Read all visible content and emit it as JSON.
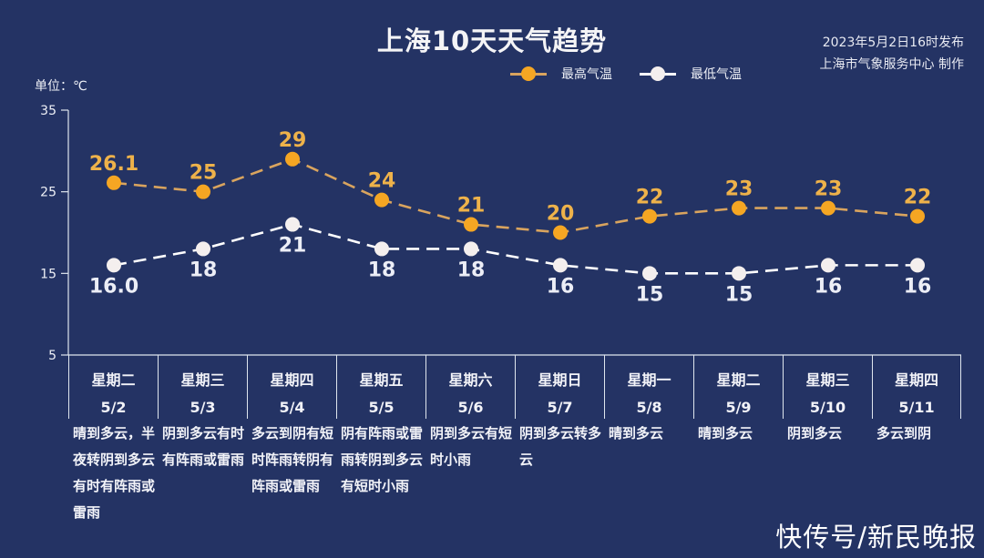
{
  "header": {
    "title": "上海10天天气趋势",
    "publish_time": "2023年5月2日16时发布",
    "publisher": "上海市气象服务中心 制作"
  },
  "legend": {
    "high": {
      "label": "最高气温",
      "color": "#f5a623",
      "line_color": "#d9a45e",
      "icon": "dashed-line-with-circle-marker"
    },
    "low": {
      "label": "最低气温",
      "color": "#f4efee",
      "line_color": "#ffffff",
      "icon": "dashed-line-with-circle-marker"
    }
  },
  "axis": {
    "unit_label": "单位：℃",
    "ticks": [
      "35",
      "25",
      "15",
      "5"
    ]
  },
  "days": [
    {
      "weekday": "星期二",
      "date": "5/2",
      "weather": "晴到多云，半夜转阴到多云有时有阵雨或雷雨",
      "high_label": "26.1",
      "low_label": "16.0"
    },
    {
      "weekday": "星期三",
      "date": "5/3",
      "weather": "阴到多云有时有阵雨或雷雨",
      "high_label": "25",
      "low_label": "18"
    },
    {
      "weekday": "星期四",
      "date": "5/4",
      "weather": "多云到阴有短时阵雨转阴有阵雨或雷雨",
      "high_label": "29",
      "low_label": "21"
    },
    {
      "weekday": "星期五",
      "date": "5/5",
      "weather": "阴有阵雨或雷雨转阴到多云有短时小雨",
      "high_label": "24",
      "low_label": "18"
    },
    {
      "weekday": "星期六",
      "date": "5/6",
      "weather": "阴到多云有短时小雨",
      "high_label": "21",
      "low_label": "18"
    },
    {
      "weekday": "星期日",
      "date": "5/7",
      "weather": "阴到多云转多云",
      "high_label": "20",
      "low_label": "16"
    },
    {
      "weekday": "星期一",
      "date": "5/8",
      "weather": "晴到多云",
      "high_label": "22",
      "low_label": "15"
    },
    {
      "weekday": "星期二",
      "date": "5/9",
      "weather": "晴到多云",
      "high_label": "23",
      "low_label": "15"
    },
    {
      "weekday": "星期三",
      "date": "5/10",
      "weather": "阴到多云",
      "high_label": "23",
      "low_label": "16"
    },
    {
      "weekday": "星期四",
      "date": "5/11",
      "weather": "多云到阴",
      "high_label": "22",
      "low_label": "16"
    }
  ],
  "watermark": "快传号/新民晚报",
  "colors": {
    "background": "#243364",
    "high_marker": "#f5a623",
    "high_line": "#d9a45e",
    "high_label": "#eeb24a",
    "low_marker": "#f4efee",
    "low_line": "#ffffff",
    "axis": "#dfe6ee"
  },
  "chart_data": {
    "type": "line",
    "title": "上海10天天气趋势",
    "subtitle": "2023年5月2日16时发布 / 上海市气象服务中心 制作",
    "xlabel": "",
    "ylabel": "单位：℃",
    "categories": [
      "星期二 5/2",
      "星期三 5/3",
      "星期四 5/4",
      "星期五 5/5",
      "星期六 5/6",
      "星期日 5/7",
      "星期一 5/8",
      "星期二 5/9",
      "星期三 5/10",
      "星期四 5/11"
    ],
    "series": [
      {
        "name": "最高气温",
        "values": [
          26.1,
          25,
          29,
          24,
          21,
          20,
          22,
          23,
          23,
          22
        ],
        "style": "dashed",
        "marker": "circle"
      },
      {
        "name": "最低气温",
        "values": [
          16.0,
          18,
          21,
          18,
          18,
          16,
          15,
          15,
          16,
          16
        ],
        "style": "dashed",
        "marker": "circle"
      }
    ],
    "ylim": [
      5,
      35
    ],
    "yticks": [
      5,
      15,
      25,
      35
    ],
    "grid": false,
    "legend_position": "top-center",
    "data_labels": true
  }
}
